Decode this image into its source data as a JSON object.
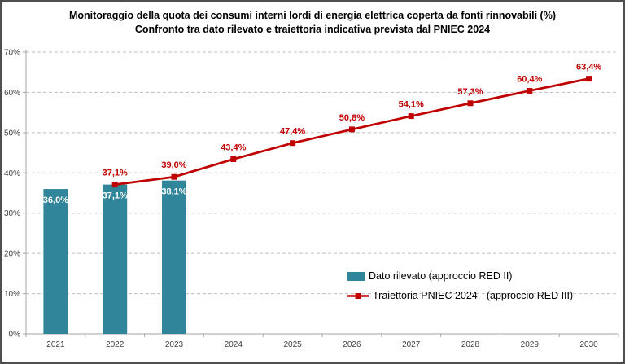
{
  "title": {
    "line1": "Monitoraggio della quota dei consumi interni lordi di energia elettrica coperta da fonti rinnovabili (%)",
    "line2": "Confronto tra dato rilevato e traiettoria indicativa prevista dal PNIEC 2024"
  },
  "chart_data": {
    "type": "bar+line",
    "categories": [
      "2021",
      "2022",
      "2023",
      "2024",
      "2025",
      "2026",
      "2027",
      "2028",
      "2029",
      "2030"
    ],
    "series": [
      {
        "name": "Dato rilevato (approccio RED II)",
        "type": "bar",
        "color": "#31859B",
        "values": [
          36.0,
          37.1,
          38.1,
          null,
          null,
          null,
          null,
          null,
          null,
          null
        ],
        "labels": [
          "36,0%",
          "37,1%",
          "38,1%",
          null,
          null,
          null,
          null,
          null,
          null,
          null
        ]
      },
      {
        "name": "Traiettoria PNIEC 2024 - (approccio RED III)",
        "type": "line",
        "color": "#C00000",
        "values": [
          null,
          37.1,
          39.0,
          43.4,
          47.4,
          50.8,
          54.1,
          57.3,
          60.4,
          63.4
        ],
        "labels": [
          null,
          "37,1%",
          "39,0%",
          "43,4%",
          "47,4%",
          "50,8%",
          "54,1%",
          "57,3%",
          "60,4%",
          "63,4%"
        ]
      }
    ],
    "ylim": [
      0,
      70
    ],
    "ytick_step": 10,
    "ytick_labels": [
      "0%",
      "10%",
      "20%",
      "30%",
      "40%",
      "50%",
      "60%",
      "70%"
    ],
    "grid": "horizontal-dashed",
    "legend_position": "inside-lower-right"
  },
  "legend": {
    "items": [
      {
        "label": "Dato rilevato (approccio RED II)",
        "swatch": "bar",
        "color": "#31859B"
      },
      {
        "label": "Traiettoria PNIEC 2024 - (approccio RED III)",
        "swatch": "line-marker",
        "color": "#C00000"
      }
    ]
  },
  "colors": {
    "bar": "#31859B",
    "line": "#C00000",
    "gridline": "#BFBFBF",
    "axis": "#A6A6A6",
    "tick_text": "#404040",
    "title_text": "#000000",
    "frame_border": "#4F4F4F",
    "background": "#FFFFFF"
  }
}
